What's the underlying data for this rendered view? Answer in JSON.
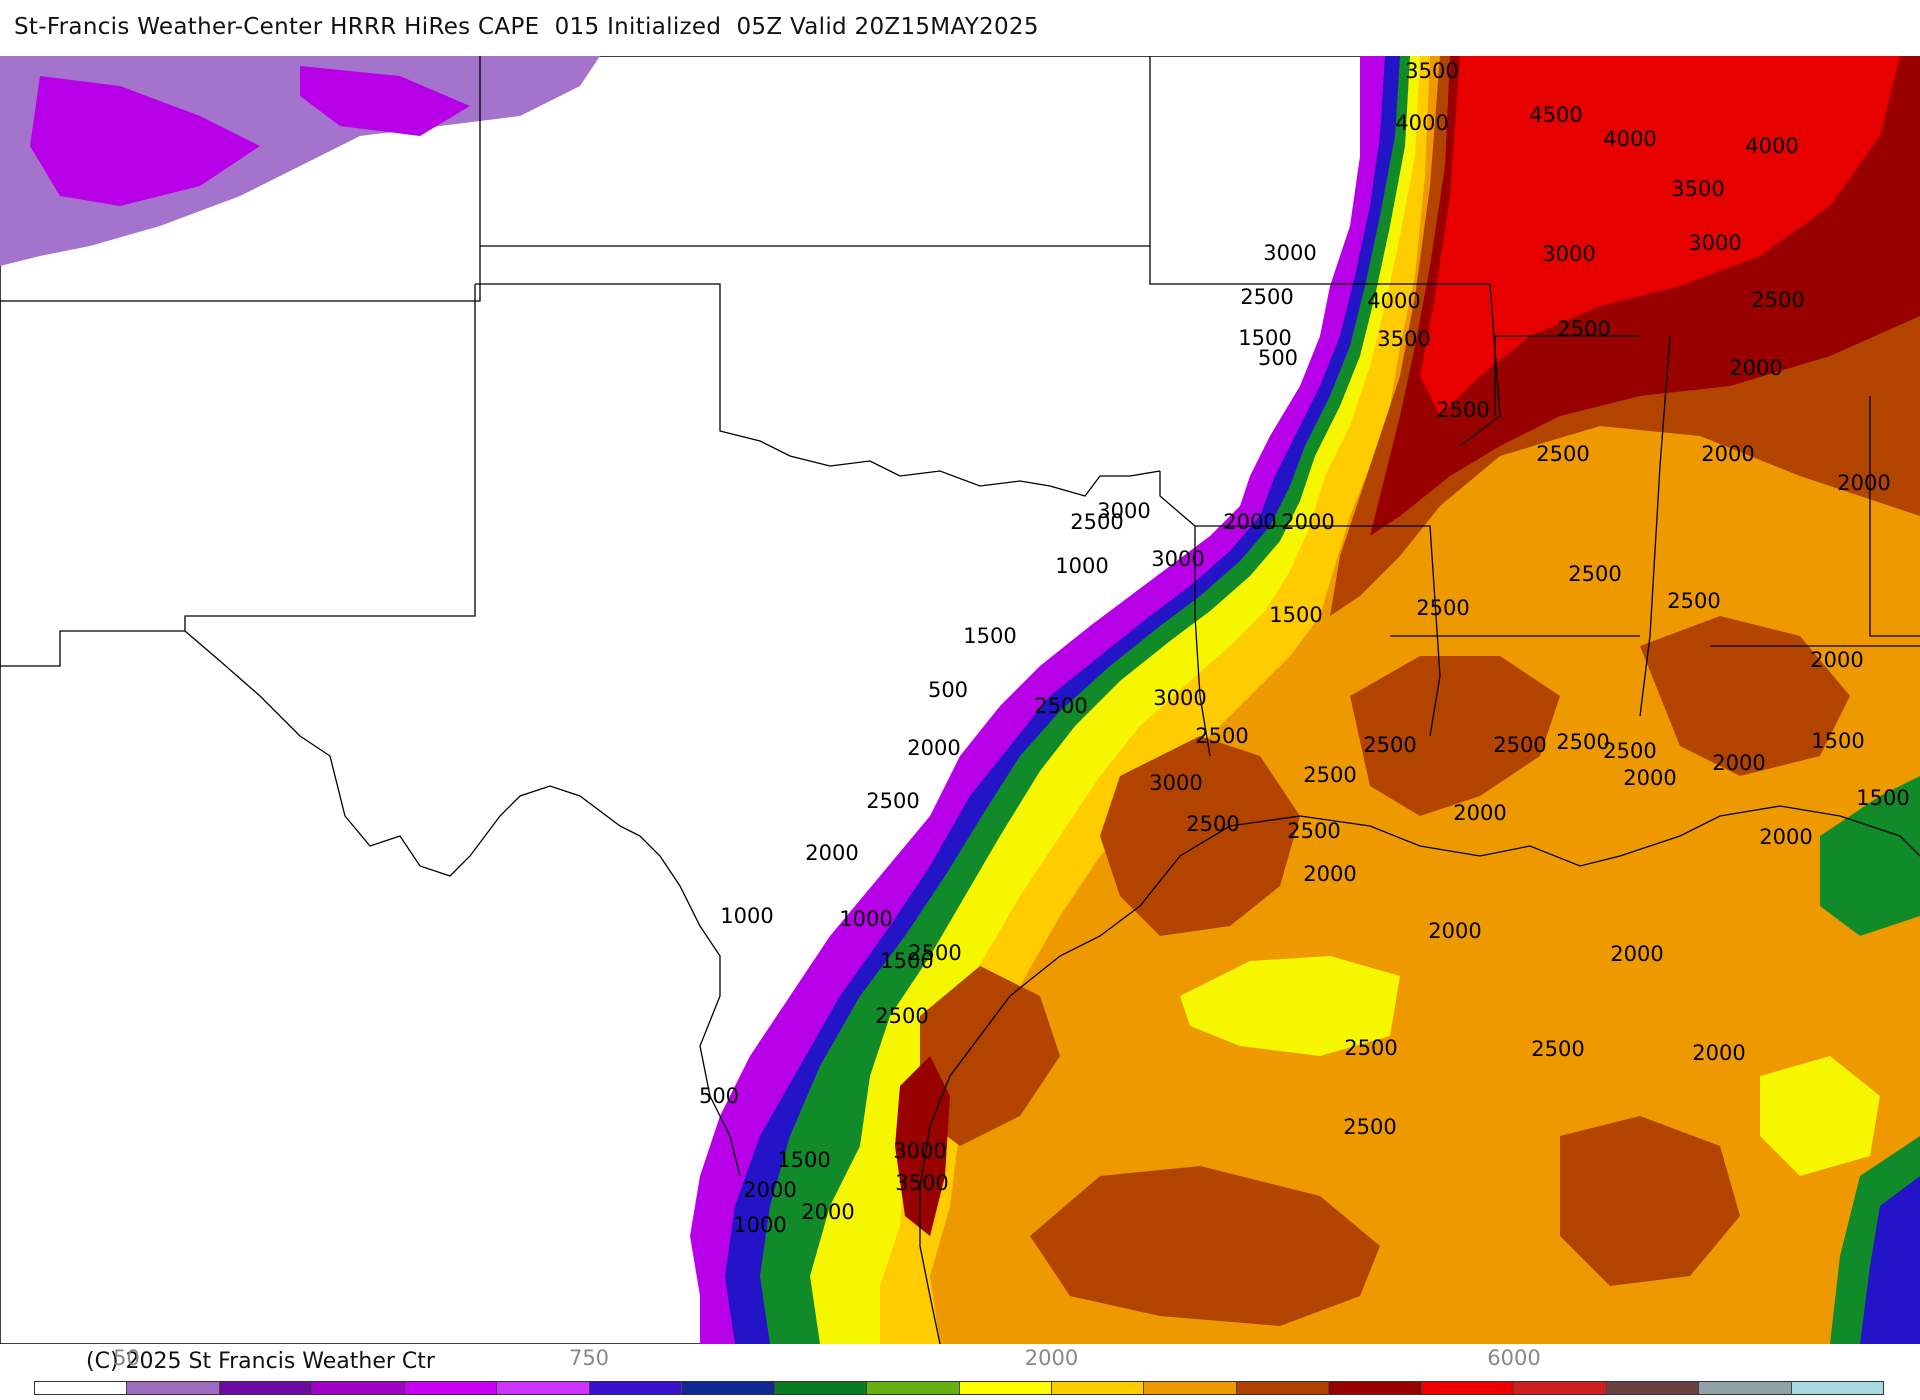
{
  "title": "St-Francis Weather-Center HRRR HiRes CAPE  015 Initialized  05Z Valid 20Z15MAY2025",
  "copyright": "(C) 2025 St Francis Weather Ctr",
  "colorbar": {
    "tick_labels": [
      {
        "text": "50",
        "index": 1
      },
      {
        "text": "750",
        "index": 6
      },
      {
        "text": "2000",
        "index": 11
      },
      {
        "text": "6000",
        "index": 16
      }
    ],
    "colors": [
      "#ffffff",
      "#9b6cc0",
      "#6a0aa0",
      "#a000c8",
      "#c800f0",
      "#cc33ff",
      "#3a10d0",
      "#102890",
      "#0a7a20",
      "#66b010",
      "#ffff00",
      "#ffcc00",
      "#ee9900",
      "#b04000",
      "#990000",
      "#ee0000",
      "#cc2020",
      "#6a4040",
      "#8fa2a8",
      "#a8d8e0"
    ]
  },
  "map": {
    "domain_colors": {
      "none": "#ffffff",
      "purple": "#b800e8",
      "blue": "#2414c8",
      "darkblue": "#0a2a8a",
      "green": "#118a2a",
      "lightgreen": "#66b414",
      "yellow": "#f6f600",
      "gold": "#ffcc00",
      "orange": "#ee9900",
      "rust": "#b24400",
      "darkred": "#990000",
      "red": "#e80000",
      "lavender": "#a474cc"
    },
    "contour_labels": [
      "500",
      "3500",
      "4000",
      "4500",
      "4000",
      "4000",
      "3500",
      "3000",
      "3000",
      "3000",
      "2500",
      "4000",
      "3500",
      "2500",
      "2500",
      "1500",
      "500",
      "2000",
      "2500",
      "2000",
      "2500",
      "2000",
      "3000",
      "2500",
      "2000",
      "2000",
      "3000",
      "1000",
      "2500",
      "1500",
      "2500",
      "2500",
      "1500",
      "2000",
      "500",
      "3000",
      "2500",
      "2000",
      "2500",
      "2500",
      "2500",
      "2500",
      "2500",
      "1500",
      "2000",
      "2500",
      "2000",
      "3000",
      "2500",
      "2500",
      "1500",
      "2000",
      "2500",
      "2000",
      "2000",
      "2000",
      "1000",
      "1000",
      "2500",
      "1500",
      "2000",
      "2000",
      "2500",
      "2500",
      "2500",
      "2000",
      "500",
      "2500",
      "3000",
      "1500",
      "3500",
      "2000",
      "2000",
      "1000"
    ]
  }
}
